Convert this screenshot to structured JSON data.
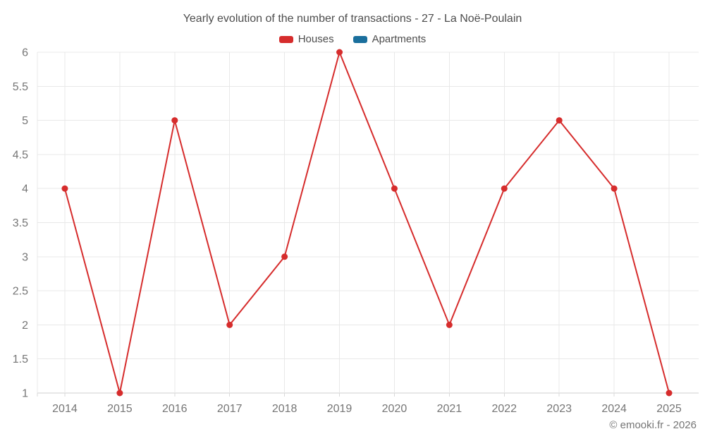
{
  "chart_data": {
    "type": "line",
    "title": "Yearly evolution of the number of transactions - 27 - La Noë-Poulain",
    "categories": [
      "2014",
      "2015",
      "2016",
      "2017",
      "2018",
      "2019",
      "2020",
      "2021",
      "2022",
      "2023",
      "2024",
      "2025"
    ],
    "series": [
      {
        "name": "Houses",
        "color": "#d62c2c",
        "values": [
          4,
          1,
          5,
          2,
          3,
          6,
          4,
          2,
          4,
          5,
          4,
          1
        ]
      },
      {
        "name": "Apartments",
        "color": "#1a6f9d",
        "values": []
      }
    ],
    "xlabel": "",
    "ylabel": "",
    "ylim": [
      1,
      6
    ],
    "ytick_step": 0.5,
    "ytick_labels": [
      "1",
      "1.5",
      "2",
      "2.5",
      "3",
      "3.5",
      "4",
      "4.5",
      "5",
      "5.5",
      "6"
    ],
    "grid": true,
    "legend_position": "top",
    "colors": {
      "grid": "#e8e8e8",
      "axis_line": "#cfcfcf",
      "tick": "#d8d8d8",
      "axis_text": "#757575",
      "title_text": "#4d4d4d"
    }
  },
  "footer": {
    "copyright": "© emooki.fr - 2026"
  }
}
